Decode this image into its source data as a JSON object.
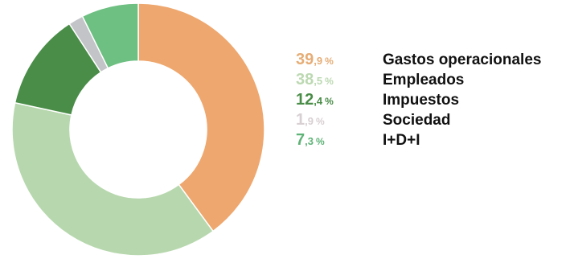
{
  "chart_data": {
    "type": "pie",
    "donut": true,
    "title": "",
    "categories": [
      "Gastos operacionales",
      "Empleados",
      "Impuestos",
      "Sociedad",
      "I+D+I"
    ],
    "values": [
      39.9,
      38.5,
      12.4,
      1.9,
      7.3
    ],
    "value_labels": [
      {
        "int": "39",
        "dec": ",9",
        "sign": "%"
      },
      {
        "int": "38",
        "dec": ",5",
        "sign": "%"
      },
      {
        "int": "12",
        "dec": ",4",
        "sign": "%"
      },
      {
        "int": "1",
        "dec": ",9",
        "sign": "%"
      },
      {
        "int": "7",
        "dec": ",3",
        "sign": "%"
      }
    ],
    "colors": [
      "#eea76e",
      "#b7d8ae",
      "#4a8d48",
      "#c2c4c7",
      "#6ebf82"
    ],
    "legend_text_colors": [
      "#e6ad76",
      "#bcd9b2",
      "#4a8d48",
      "#d8cfd3",
      "#5fb377"
    ],
    "start_angle_deg": 0,
    "direction": "clockwise",
    "legend_placement": "right"
  }
}
